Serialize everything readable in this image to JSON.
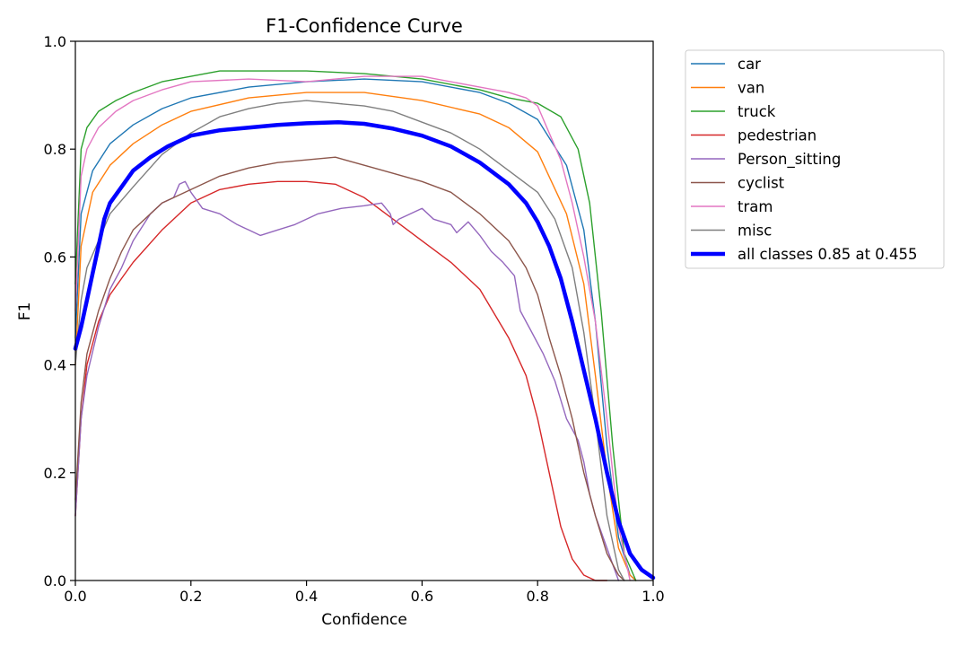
{
  "chart_data": {
    "type": "line",
    "title": "F1-Confidence Curve",
    "xlabel": "Confidence",
    "ylabel": "F1",
    "xlim": [
      0,
      1
    ],
    "ylim": [
      0,
      1
    ],
    "xticks": [
      "0.0",
      "0.2",
      "0.4",
      "0.6",
      "0.8",
      "1.0"
    ],
    "yticks": [
      "0.0",
      "0.2",
      "0.4",
      "0.6",
      "0.8",
      "1.0"
    ],
    "legend_position": "outside-right-top",
    "series": [
      {
        "name": "car",
        "color": "#1f77b4",
        "x": [
          0,
          0.01,
          0.03,
          0.06,
          0.1,
          0.15,
          0.2,
          0.3,
          0.4,
          0.5,
          0.6,
          0.7,
          0.75,
          0.8,
          0.85,
          0.88,
          0.9,
          0.92,
          0.94,
          0.96,
          0.97
        ],
        "y": [
          0.45,
          0.68,
          0.76,
          0.81,
          0.845,
          0.875,
          0.895,
          0.915,
          0.925,
          0.93,
          0.925,
          0.905,
          0.885,
          0.855,
          0.77,
          0.65,
          0.48,
          0.25,
          0.08,
          0.01,
          0.0
        ]
      },
      {
        "name": "van",
        "color": "#ff7f0e",
        "x": [
          0,
          0.01,
          0.03,
          0.06,
          0.1,
          0.15,
          0.2,
          0.3,
          0.4,
          0.5,
          0.6,
          0.7,
          0.75,
          0.8,
          0.85,
          0.88,
          0.9,
          0.92,
          0.94,
          0.96,
          0.97
        ],
        "y": [
          0.4,
          0.62,
          0.72,
          0.77,
          0.81,
          0.845,
          0.87,
          0.895,
          0.905,
          0.905,
          0.89,
          0.865,
          0.84,
          0.795,
          0.68,
          0.55,
          0.38,
          0.2,
          0.06,
          0.01,
          0.0
        ]
      },
      {
        "name": "truck",
        "color": "#2ca02c",
        "x": [
          0,
          0.01,
          0.02,
          0.04,
          0.07,
          0.1,
          0.15,
          0.2,
          0.25,
          0.3,
          0.4,
          0.5,
          0.6,
          0.7,
          0.75,
          0.8,
          0.84,
          0.87,
          0.89,
          0.91,
          0.93,
          0.95,
          0.97
        ],
        "y": [
          0.55,
          0.8,
          0.84,
          0.87,
          0.89,
          0.905,
          0.925,
          0.935,
          0.945,
          0.945,
          0.945,
          0.94,
          0.93,
          0.91,
          0.895,
          0.885,
          0.86,
          0.8,
          0.7,
          0.5,
          0.25,
          0.05,
          0.0
        ]
      },
      {
        "name": "pedestrian",
        "color": "#d62728",
        "x": [
          0,
          0.01,
          0.02,
          0.04,
          0.06,
          0.08,
          0.1,
          0.15,
          0.2,
          0.25,
          0.3,
          0.35,
          0.4,
          0.45,
          0.5,
          0.55,
          0.6,
          0.65,
          0.7,
          0.75,
          0.78,
          0.8,
          0.82,
          0.84,
          0.86,
          0.88,
          0.9,
          0.92
        ],
        "y": [
          0.12,
          0.3,
          0.4,
          0.48,
          0.53,
          0.56,
          0.59,
          0.65,
          0.7,
          0.725,
          0.735,
          0.74,
          0.74,
          0.735,
          0.71,
          0.67,
          0.63,
          0.59,
          0.54,
          0.45,
          0.38,
          0.3,
          0.2,
          0.1,
          0.04,
          0.01,
          0.0,
          0.0
        ]
      },
      {
        "name": "Person_sitting",
        "color": "#9467bd",
        "x": [
          0,
          0.01,
          0.02,
          0.04,
          0.06,
          0.08,
          0.1,
          0.13,
          0.15,
          0.17,
          0.18,
          0.19,
          0.2,
          0.22,
          0.25,
          0.28,
          0.3,
          0.32,
          0.35,
          0.38,
          0.42,
          0.46,
          0.5,
          0.53,
          0.545,
          0.55,
          0.56,
          0.58,
          0.6,
          0.62,
          0.65,
          0.66,
          0.68,
          0.7,
          0.72,
          0.74,
          0.76,
          0.77,
          0.79,
          0.81,
          0.83,
          0.85,
          0.87,
          0.88,
          0.89,
          0.9,
          0.92,
          0.93,
          0.94
        ],
        "y": [
          0.12,
          0.3,
          0.38,
          0.47,
          0.54,
          0.58,
          0.63,
          0.68,
          0.7,
          0.71,
          0.735,
          0.74,
          0.72,
          0.69,
          0.68,
          0.66,
          0.65,
          0.64,
          0.65,
          0.66,
          0.68,
          0.69,
          0.695,
          0.7,
          0.68,
          0.66,
          0.67,
          0.68,
          0.69,
          0.67,
          0.66,
          0.645,
          0.665,
          0.64,
          0.61,
          0.59,
          0.565,
          0.5,
          0.46,
          0.42,
          0.37,
          0.3,
          0.26,
          0.22,
          0.16,
          0.12,
          0.06,
          0.03,
          0.0
        ]
      },
      {
        "name": "cyclist",
        "color": "#8c564b",
        "x": [
          0,
          0.01,
          0.02,
          0.04,
          0.06,
          0.08,
          0.1,
          0.15,
          0.2,
          0.25,
          0.3,
          0.35,
          0.4,
          0.45,
          0.5,
          0.55,
          0.6,
          0.65,
          0.7,
          0.75,
          0.78,
          0.8,
          0.82,
          0.84,
          0.86,
          0.88,
          0.9,
          0.92,
          0.94,
          0.95
        ],
        "y": [
          0.15,
          0.33,
          0.42,
          0.5,
          0.56,
          0.61,
          0.65,
          0.7,
          0.725,
          0.75,
          0.765,
          0.775,
          0.78,
          0.785,
          0.77,
          0.755,
          0.74,
          0.72,
          0.68,
          0.63,
          0.58,
          0.53,
          0.45,
          0.38,
          0.3,
          0.2,
          0.12,
          0.05,
          0.01,
          0.0
        ]
      },
      {
        "name": "tram",
        "color": "#e377c2",
        "x": [
          0,
          0.01,
          0.02,
          0.04,
          0.07,
          0.1,
          0.15,
          0.2,
          0.3,
          0.4,
          0.5,
          0.6,
          0.7,
          0.75,
          0.78,
          0.8,
          0.82,
          0.84,
          0.86,
          0.88,
          0.9,
          0.92,
          0.94,
          0.96
        ],
        "y": [
          0.5,
          0.75,
          0.8,
          0.84,
          0.87,
          0.89,
          0.91,
          0.925,
          0.93,
          0.925,
          0.935,
          0.935,
          0.915,
          0.905,
          0.895,
          0.88,
          0.83,
          0.78,
          0.7,
          0.6,
          0.48,
          0.3,
          0.1,
          0.0
        ]
      },
      {
        "name": "misc",
        "color": "#7f7f7f",
        "x": [
          0,
          0.01,
          0.02,
          0.04,
          0.06,
          0.1,
          0.15,
          0.2,
          0.25,
          0.3,
          0.35,
          0.4,
          0.45,
          0.5,
          0.55,
          0.6,
          0.65,
          0.7,
          0.75,
          0.8,
          0.83,
          0.86,
          0.88,
          0.9,
          0.92,
          0.94,
          0.95
        ],
        "y": [
          0.4,
          0.52,
          0.58,
          0.63,
          0.68,
          0.73,
          0.79,
          0.83,
          0.86,
          0.875,
          0.885,
          0.89,
          0.885,
          0.88,
          0.87,
          0.85,
          0.83,
          0.8,
          0.76,
          0.72,
          0.67,
          0.58,
          0.46,
          0.3,
          0.12,
          0.02,
          0.0
        ]
      },
      {
        "name": "all classes 0.85 at 0.455",
        "color": "#0000ff",
        "bold": true,
        "x": [
          0,
          0.01,
          0.02,
          0.03,
          0.04,
          0.05,
          0.06,
          0.08,
          0.1,
          0.13,
          0.16,
          0.2,
          0.25,
          0.3,
          0.35,
          0.4,
          0.455,
          0.5,
          0.55,
          0.6,
          0.65,
          0.7,
          0.75,
          0.78,
          0.8,
          0.82,
          0.84,
          0.86,
          0.88,
          0.9,
          0.92,
          0.94,
          0.96,
          0.98,
          1.0
        ],
        "y": [
          0.43,
          0.47,
          0.52,
          0.57,
          0.62,
          0.67,
          0.7,
          0.73,
          0.76,
          0.785,
          0.805,
          0.825,
          0.835,
          0.84,
          0.845,
          0.848,
          0.85,
          0.847,
          0.838,
          0.825,
          0.805,
          0.775,
          0.735,
          0.7,
          0.665,
          0.62,
          0.56,
          0.48,
          0.39,
          0.3,
          0.2,
          0.11,
          0.05,
          0.02,
          0.005
        ]
      }
    ]
  }
}
